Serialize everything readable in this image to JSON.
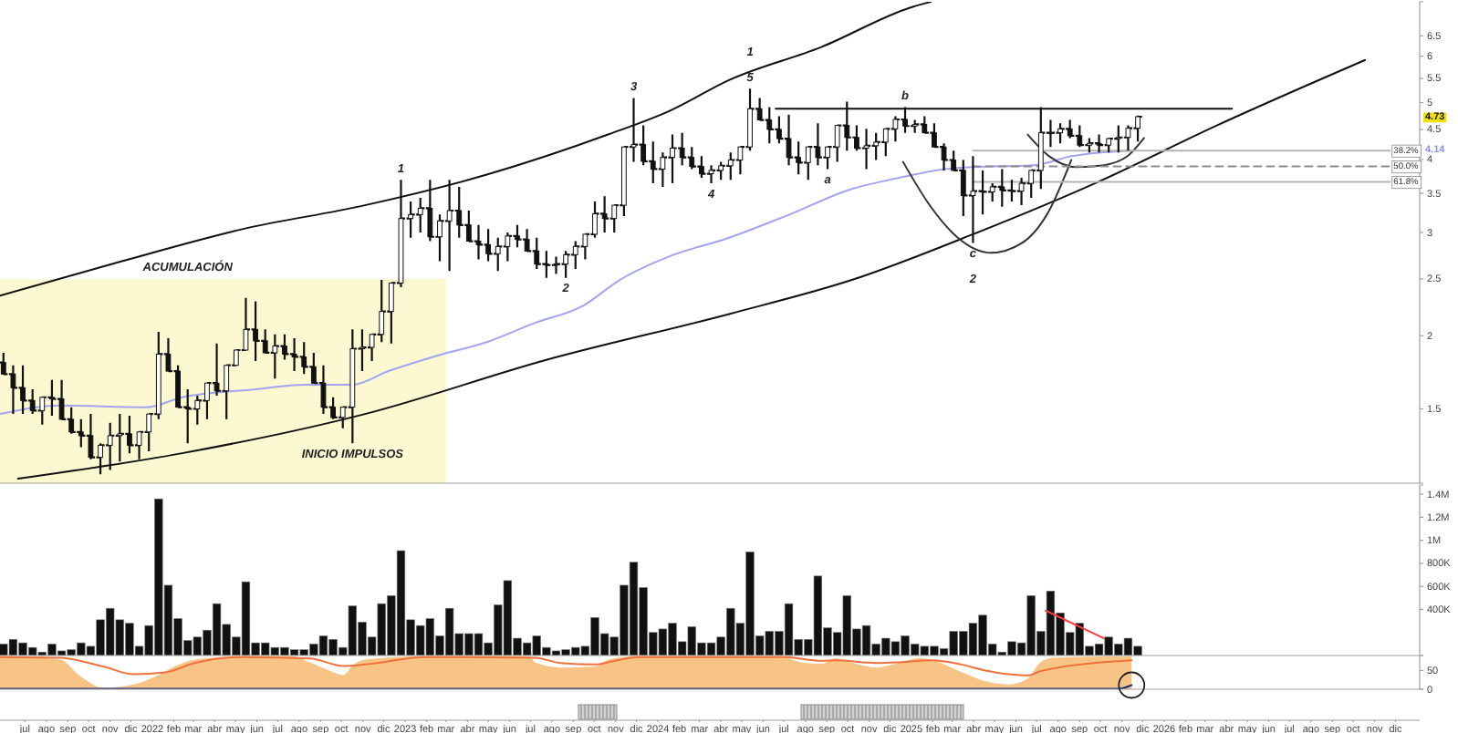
{
  "chart_data": [
    {
      "type": "candlestick",
      "color": "#111111",
      "log": true,
      "tick_labels": "y",
      "xlim": [
        "2021-05-26",
        "2027-01-05"
      ],
      "ylim": [
        1.12,
        7.43
      ],
      "yticks": [
        1.5,
        2,
        2.5,
        3,
        3.5,
        4,
        4.5,
        5,
        5.5,
        6,
        6.5
      ],
      "x": [
        "2021-05-31",
        "2021-06-14",
        "2021-06-28",
        "2021-07-12",
        "2021-07-26",
        "2021-08-09",
        "2021-08-23",
        "2021-09-06",
        "2021-09-20",
        "2021-10-04",
        "2021-10-18",
        "2021-11-01",
        "2021-11-15",
        "2021-11-29",
        "2021-12-13",
        "2021-12-27",
        "2022-01-10",
        "2022-01-24",
        "2022-02-07",
        "2022-02-21",
        "2022-03-07",
        "2022-03-21",
        "2022-04-04",
        "2022-04-18",
        "2022-05-02",
        "2022-05-16",
        "2022-05-30",
        "2022-06-13",
        "2022-06-27",
        "2022-07-11",
        "2022-07-25",
        "2022-08-08",
        "2022-08-22",
        "2022-09-05",
        "2022-09-19",
        "2022-10-03",
        "2022-10-17",
        "2022-10-31",
        "2022-11-14",
        "2022-11-28",
        "2022-12-12",
        "2022-12-26",
        "2023-01-09",
        "2023-01-23",
        "2023-02-06",
        "2023-02-20",
        "2023-03-06",
        "2023-03-20",
        "2023-04-03",
        "2023-04-17",
        "2023-05-01",
        "2023-05-15",
        "2023-05-29",
        "2023-06-12",
        "2023-06-26",
        "2023-07-10",
        "2023-07-24",
        "2023-08-07",
        "2023-08-21",
        "2023-09-04",
        "2023-09-18",
        "2023-10-02",
        "2023-10-16",
        "2023-10-30",
        "2023-11-13",
        "2023-11-27",
        "2023-12-11",
        "2023-12-25",
        "2024-01-08",
        "2024-01-22",
        "2024-02-05",
        "2024-02-19",
        "2024-03-04",
        "2024-03-18",
        "2024-04-01",
        "2024-04-15",
        "2024-04-29",
        "2024-05-13",
        "2024-05-27",
        "2024-06-10",
        "2024-06-24",
        "2024-07-08",
        "2024-07-22",
        "2024-08-05",
        "2024-08-19",
        "2024-09-02",
        "2024-09-16",
        "2024-09-30",
        "2024-10-14",
        "2024-10-28",
        "2024-11-11",
        "2024-11-25",
        "2024-12-09",
        "2024-12-23",
        "2025-01-06",
        "2025-01-20",
        "2025-02-03",
        "2025-02-17",
        "2025-03-03",
        "2025-03-17",
        "2025-03-31",
        "2025-04-14",
        "2025-04-28",
        "2025-05-12",
        "2025-05-26",
        "2025-06-09",
        "2025-06-23",
        "2025-07-07",
        "2025-07-21",
        "2025-08-04",
        "2025-08-18",
        "2025-09-01",
        "2025-09-15",
        "2025-09-29",
        "2025-10-13",
        "2025-10-27",
        "2025-11-10",
        "2025-11-24"
      ],
      "ohlc": [
        [
          1.8,
          1.87,
          1.72,
          1.72
        ],
        [
          1.72,
          1.78,
          1.47,
          1.63
        ],
        [
          1.63,
          1.78,
          1.47,
          1.55
        ],
        [
          1.55,
          1.62,
          1.47,
          1.49
        ],
        [
          1.49,
          1.57,
          1.41,
          1.57
        ],
        [
          1.57,
          1.68,
          1.46,
          1.56
        ],
        [
          1.56,
          1.68,
          1.44,
          1.44
        ],
        [
          1.44,
          1.51,
          1.36,
          1.37
        ],
        [
          1.37,
          1.44,
          1.29,
          1.35
        ],
        [
          1.35,
          1.47,
          1.23,
          1.24
        ],
        [
          1.24,
          1.31,
          1.16,
          1.3
        ],
        [
          1.3,
          1.42,
          1.18,
          1.35
        ],
        [
          1.35,
          1.47,
          1.22,
          1.36
        ],
        [
          1.36,
          1.46,
          1.26,
          1.3
        ],
        [
          1.3,
          1.37,
          1.23,
          1.37
        ],
        [
          1.37,
          1.47,
          1.27,
          1.47
        ],
        [
          1.47,
          2.03,
          1.44,
          1.86
        ],
        [
          1.86,
          1.98,
          1.74,
          1.74
        ],
        [
          1.74,
          1.78,
          1.51,
          1.51
        ],
        [
          1.51,
          1.62,
          1.31,
          1.5
        ],
        [
          1.5,
          1.58,
          1.41,
          1.55
        ],
        [
          1.55,
          1.66,
          1.44,
          1.66
        ],
        [
          1.66,
          1.94,
          1.58,
          1.61
        ],
        [
          1.61,
          1.78,
          1.44,
          1.78
        ],
        [
          1.78,
          1.89,
          1.78,
          1.89
        ],
        [
          1.89,
          2.32,
          1.89,
          2.05
        ],
        [
          2.05,
          2.29,
          1.81,
          1.96
        ],
        [
          1.96,
          2.05,
          1.87,
          1.87
        ],
        [
          1.87,
          2.01,
          1.69,
          1.92
        ],
        [
          1.92,
          2.01,
          1.82,
          1.86
        ],
        [
          1.86,
          1.98,
          1.74,
          1.84
        ],
        [
          1.84,
          1.95,
          1.72,
          1.77
        ],
        [
          1.77,
          1.87,
          1.66,
          1.66
        ],
        [
          1.66,
          1.78,
          1.47,
          1.51
        ],
        [
          1.51,
          1.57,
          1.44,
          1.45
        ],
        [
          1.45,
          1.51,
          1.39,
          1.51
        ],
        [
          1.51,
          2.05,
          1.31,
          1.9
        ],
        [
          1.9,
          2.05,
          1.74,
          1.91
        ],
        [
          1.91,
          2.01,
          1.81,
          2.01
        ],
        [
          2.01,
          2.49,
          1.95,
          2.2
        ],
        [
          2.2,
          2.46,
          1.94,
          2.46
        ],
        [
          2.46,
          3.69,
          2.42,
          3.17
        ],
        [
          3.17,
          3.39,
          2.94,
          3.22
        ],
        [
          3.22,
          3.44,
          3.0,
          3.3
        ],
        [
          3.3,
          3.69,
          2.9,
          2.95
        ],
        [
          2.95,
          3.22,
          2.68,
          3.14
        ],
        [
          3.14,
          3.69,
          2.58,
          3.27
        ],
        [
          3.27,
          3.59,
          2.94,
          3.09
        ],
        [
          3.09,
          3.27,
          2.9,
          2.9
        ],
        [
          2.9,
          3.09,
          2.7,
          2.86
        ],
        [
          2.86,
          3.04,
          2.68,
          2.76
        ],
        [
          2.76,
          2.94,
          2.58,
          2.84
        ],
        [
          2.84,
          3.0,
          2.68,
          2.96
        ],
        [
          2.96,
          3.09,
          2.83,
          2.92
        ],
        [
          2.92,
          3.04,
          2.79,
          2.79
        ],
        [
          2.79,
          2.94,
          2.6,
          2.65
        ],
        [
          2.65,
          2.79,
          2.51,
          2.64
        ],
        [
          2.64,
          2.73,
          2.55,
          2.65
        ],
        [
          2.65,
          2.79,
          2.51,
          2.75
        ],
        [
          2.75,
          2.9,
          2.6,
          2.84
        ],
        [
          2.84,
          2.98,
          2.7,
          2.98
        ],
        [
          2.98,
          3.39,
          2.94,
          3.23
        ],
        [
          3.23,
          3.46,
          3.0,
          3.17
        ],
        [
          3.17,
          3.34,
          3.0,
          3.34
        ],
        [
          3.34,
          4.2,
          3.2,
          4.2
        ],
        [
          4.2,
          5.09,
          3.96,
          4.24
        ],
        [
          4.24,
          4.57,
          3.91,
          3.97
        ],
        [
          3.97,
          4.29,
          3.64,
          3.85
        ],
        [
          3.85,
          4.11,
          3.59,
          4.03
        ],
        [
          4.03,
          4.41,
          3.64,
          4.18
        ],
        [
          4.18,
          4.44,
          3.91,
          4.03
        ],
        [
          4.03,
          4.2,
          3.85,
          3.89
        ],
        [
          3.89,
          4.05,
          3.72,
          3.78
        ],
        [
          3.78,
          3.91,
          3.64,
          3.83
        ],
        [
          3.83,
          3.96,
          3.69,
          3.9
        ],
        [
          3.9,
          4.11,
          3.69,
          3.99
        ],
        [
          3.99,
          4.2,
          3.77,
          4.2
        ],
        [
          4.2,
          5.28,
          4.14,
          4.88
        ],
        [
          4.88,
          5.09,
          4.67,
          4.67
        ],
        [
          4.67,
          4.91,
          4.26,
          4.5
        ],
        [
          4.5,
          4.74,
          4.26,
          4.34
        ],
        [
          4.34,
          4.77,
          3.91,
          4.03
        ],
        [
          4.03,
          4.29,
          3.77,
          3.95
        ],
        [
          3.95,
          4.2,
          3.69,
          4.2
        ],
        [
          4.2,
          4.61,
          3.91,
          4.03
        ],
        [
          4.03,
          4.2,
          3.85,
          4.2
        ],
        [
          4.2,
          4.57,
          3.96,
          4.57
        ],
        [
          4.57,
          5.02,
          4.14,
          4.36
        ],
        [
          4.36,
          4.57,
          4.14,
          4.18
        ],
        [
          4.18,
          4.51,
          3.85,
          4.22
        ],
        [
          4.22,
          4.44,
          3.99,
          4.28
        ],
        [
          4.28,
          4.51,
          4.05,
          4.51
        ],
        [
          4.51,
          4.74,
          4.29,
          4.68
        ],
        [
          4.68,
          4.91,
          4.44,
          4.56
        ],
        [
          4.56,
          4.67,
          4.44,
          4.59
        ],
        [
          4.59,
          4.74,
          4.44,
          4.44
        ],
        [
          4.44,
          4.61,
          4.2,
          4.2
        ],
        [
          4.2,
          4.26,
          3.83,
          3.99
        ],
        [
          3.99,
          4.14,
          3.83,
          3.83
        ],
        [
          3.83,
          3.99,
          3.2,
          3.47
        ],
        [
          3.47,
          4.05,
          2.88,
          3.53
        ],
        [
          3.53,
          3.83,
          3.22,
          3.52
        ],
        [
          3.52,
          3.64,
          3.39,
          3.59
        ],
        [
          3.59,
          3.85,
          3.32,
          3.54
        ],
        [
          3.54,
          3.69,
          3.39,
          3.53
        ],
        [
          3.53,
          3.72,
          3.34,
          3.64
        ],
        [
          3.64,
          3.83,
          3.44,
          3.83
        ],
        [
          3.83,
          4.91,
          3.56,
          4.44
        ],
        [
          4.44,
          4.67,
          4.2,
          4.44
        ],
        [
          4.44,
          4.61,
          4.26,
          4.51
        ],
        [
          4.51,
          4.67,
          4.35,
          4.39
        ],
        [
          4.39,
          4.57,
          4.2,
          4.23
        ],
        [
          4.23,
          4.35,
          4.11,
          4.26
        ],
        [
          4.26,
          4.41,
          4.11,
          4.23
        ],
        [
          4.23,
          4.35,
          4.11,
          4.34
        ],
        [
          4.34,
          4.57,
          4.11,
          4.36
        ],
        [
          4.36,
          4.57,
          4.14,
          4.52
        ],
        [
          4.52,
          4.75,
          4.29,
          4.73
        ]
      ],
      "series": [
        {
          "type": "area",
          "x": [
            "2021-05-26",
            "2023-03-01"
          ],
          "values": [
            2.5,
            2.5
          ],
          "color": "#fcf8d2"
        },
        {
          "type": "line",
          "color": "#a3a3f0",
          "x": [
            "2021-05-26",
            "2021-08-21",
            "2021-12-23",
            "2022-02-13",
            "2022-05-30",
            "2022-08-09",
            "2022-10-17",
            "2022-12-08",
            "2023-02-17",
            "2023-04-29",
            "2023-07-06",
            "2023-09-15",
            "2023-11-07",
            "2024-01-17",
            "2024-04-13",
            "2024-07-09",
            "2024-10-07",
            "2024-12-14",
            "2025-02-05",
            "2025-03-30",
            "2025-06-28",
            "2025-08-20",
            "2025-11-15"
          ],
          "values": [
            1.47,
            1.52,
            1.51,
            1.57,
            1.62,
            1.65,
            1.65,
            1.74,
            1.85,
            1.95,
            2.1,
            2.25,
            2.49,
            2.73,
            2.94,
            3.22,
            3.56,
            3.72,
            3.83,
            3.88,
            3.91,
            4.05,
            4.14
          ]
        },
        {
          "type": "line",
          "color": "#111111",
          "x": [
            "2021-05-26",
            "2021-11-18",
            "2022-05-11",
            "2022-11-04",
            "2023-04-30",
            "2023-10-21",
            "2024-01-18",
            "2024-04-14",
            "2024-08-24",
            "2025-01-02",
            "2025-01-29"
          ],
          "values": [
            2.34,
            2.68,
            3.04,
            3.34,
            3.77,
            4.41,
            4.84,
            5.47,
            6.22,
            7.28,
            7.43
          ]
        },
        {
          "type": "line",
          "color": "#111111",
          "x": [
            "2021-06-21",
            "2022-02-13",
            "2022-11-04",
            "2023-07-25",
            "2024-04-14",
            "2024-10-07",
            "2025-03-31",
            "2025-09-23",
            "2026-03-18",
            "2026-10-18"
          ],
          "values": [
            1.14,
            1.26,
            1.47,
            1.82,
            2.18,
            2.49,
            2.98,
            3.64,
            4.57,
            5.91
          ]
        },
        {
          "type": "line",
          "color": "#111111",
          "x": [
            "2024-06-19",
            "2026-04-09"
          ],
          "values": [
            4.88,
            4.88
          ]
        },
        {
          "type": "line",
          "color": "#333333",
          "x": [
            "2024-12-20",
            "2025-01-29",
            "2025-03-09",
            "2025-04-26",
            "2025-06-10",
            "2025-07-19",
            "2025-08-20"
          ],
          "values": [
            3.96,
            3.32,
            2.94,
            2.77,
            2.88,
            3.27,
            3.99
          ]
        },
        {
          "type": "line",
          "color": "#333333",
          "x": [
            "2025-06-18",
            "2025-07-19",
            "2025-08-28",
            "2025-10-06",
            "2025-11-09",
            "2025-12-03"
          ],
          "values": [
            4.41,
            4.05,
            3.88,
            3.91,
            4.05,
            4.35
          ]
        },
        {
          "type": "line",
          "color": "#b4b4b4",
          "x": [
            "2025-03-31",
            "2026-11-23"
          ],
          "values": [
            4.14,
            4.14
          ]
        },
        {
          "type": "line",
          "color": "#8c8c8c",
          "line_style": "dashed",
          "x": [
            "2025-03-31",
            "2026-11-23"
          ],
          "values": [
            3.89,
            3.89
          ]
        },
        {
          "type": "line",
          "color": "#b4b4b4",
          "x": [
            "2025-03-31",
            "2026-11-23"
          ],
          "values": [
            3.66,
            3.66
          ]
        }
      ],
      "annotations": [
        {
          "text": "ACUMULACIÓN",
          "x": "2022-02-21",
          "y": 2.5
        },
        {
          "text": "INICIO IMPULSOS",
          "x": "2022-10-17",
          "y": 1.31
        },
        {
          "text": "1",
          "x": "2022-12-26",
          "y": 3.69
        },
        {
          "text": "2",
          "x": "2023-08-21",
          "y": 2.51
        },
        {
          "text": "3",
          "x": "2023-11-27",
          "y": 5.09
        },
        {
          "text": "4",
          "x": "2024-03-18",
          "y": 3.64
        },
        {
          "text": "5",
          "x": "2024-05-13",
          "y": 5.28
        },
        {
          "text": "1",
          "x": "2024-05-13",
          "y": 5.28
        },
        {
          "text": "a",
          "x": "2024-09-02",
          "y": 3.85
        },
        {
          "text": "b",
          "x": "2024-12-23",
          "y": 4.91
        },
        {
          "text": "c",
          "x": "2025-03-31",
          "y": 2.88
        },
        {
          "text": "2",
          "x": "2025-03-31",
          "y": 2.88
        },
        {
          "text": "38.2%",
          "x": "2026-11-23",
          "y": 4.14
        },
        {
          "text": "50.0%",
          "x": "2026-11-23",
          "y": 3.89
        },
        {
          "text": "61.8%",
          "x": "2026-11-23",
          "y": 3.66
        },
        {
          "text": "4.73",
          "y": 4.73
        },
        "4.14"
      ]
    },
    {
      "type": "bar",
      "tick_labels": "y",
      "xlim": [
        "2021-05-26",
        "2027-01-05"
      ],
      "ylim": [
        0,
        1480000
      ],
      "yticks": [
        {
          "value": 400000,
          "label": "400K"
        },
        {
          "value": 600000,
          "label": "600K"
        },
        {
          "value": 800000,
          "label": "800K"
        },
        {
          "value": 1000000,
          "label": "1M"
        },
        {
          "value": 1200000,
          "label": "1.2M"
        },
        {
          "value": 1400000,
          "label": "1.4M"
        }
      ],
      "x": [
        "2021-05-31",
        "2021-06-14",
        "2021-06-28",
        "2021-07-12",
        "2021-07-26",
        "2021-08-09",
        "2021-08-23",
        "2021-09-06",
        "2021-09-20",
        "2021-10-04",
        "2021-10-18",
        "2021-11-01",
        "2021-11-15",
        "2021-11-29",
        "2021-12-13",
        "2021-12-27",
        "2022-01-10",
        "2022-01-24",
        "2022-02-07",
        "2022-02-21",
        "2022-03-07",
        "2022-03-21",
        "2022-04-04",
        "2022-04-18",
        "2022-05-02",
        "2022-05-16",
        "2022-05-30",
        "2022-06-13",
        "2022-06-27",
        "2022-07-11",
        "2022-07-25",
        "2022-08-08",
        "2022-08-22",
        "2022-09-05",
        "2022-09-19",
        "2022-10-03",
        "2022-10-17",
        "2022-10-31",
        "2022-11-14",
        "2022-11-28",
        "2022-12-12",
        "2022-12-26",
        "2023-01-09",
        "2023-01-23",
        "2023-02-06",
        "2023-02-20",
        "2023-03-06",
        "2023-03-20",
        "2023-04-03",
        "2023-04-17",
        "2023-05-01",
        "2023-05-15",
        "2023-05-29",
        "2023-06-12",
        "2023-06-26",
        "2023-07-10",
        "2023-07-24",
        "2023-08-07",
        "2023-08-21",
        "2023-09-04",
        "2023-09-18",
        "2023-10-02",
        "2023-10-16",
        "2023-10-30",
        "2023-11-13",
        "2023-11-27",
        "2023-12-11",
        "2023-12-25",
        "2024-01-08",
        "2024-01-22",
        "2024-02-05",
        "2024-02-19",
        "2024-03-04",
        "2024-03-18",
        "2024-04-01",
        "2024-04-15",
        "2024-04-29",
        "2024-05-13",
        "2024-05-27",
        "2024-06-10",
        "2024-06-24",
        "2024-07-08",
        "2024-07-22",
        "2024-08-05",
        "2024-08-19",
        "2024-09-02",
        "2024-09-16",
        "2024-09-30",
        "2024-10-14",
        "2024-10-28",
        "2024-11-11",
        "2024-11-25",
        "2024-12-09",
        "2024-12-23",
        "2025-01-06",
        "2025-01-20",
        "2025-02-03",
        "2025-02-17",
        "2025-03-03",
        "2025-03-17",
        "2025-03-31",
        "2025-04-14",
        "2025-04-28",
        "2025-05-12",
        "2025-05-26",
        "2025-06-09",
        "2025-06-23",
        "2025-07-07",
        "2025-07-21",
        "2025-08-04",
        "2025-08-18",
        "2025-09-01",
        "2025-09-15",
        "2025-09-29",
        "2025-10-13",
        "2025-10-27",
        "2025-11-10",
        "2025-11-24"
      ],
      "series": [
        {
          "type": "bar",
          "color": "#111111",
          "values": [
            100000,
            140000,
            110000,
            70000,
            30000,
            100000,
            40000,
            50000,
            110000,
            80000,
            310000,
            410000,
            310000,
            280000,
            80000,
            260000,
            1360000,
            610000,
            320000,
            130000,
            160000,
            220000,
            450000,
            270000,
            160000,
            640000,
            110000,
            110000,
            70000,
            70000,
            50000,
            50000,
            100000,
            170000,
            140000,
            70000,
            430000,
            290000,
            160000,
            450000,
            520000,
            910000,
            310000,
            260000,
            320000,
            170000,
            410000,
            190000,
            190000,
            190000,
            110000,
            440000,
            650000,
            150000,
            110000,
            170000,
            70000,
            40000,
            50000,
            70000,
            80000,
            330000,
            190000,
            160000,
            610000,
            810000,
            590000,
            200000,
            230000,
            280000,
            120000,
            250000,
            110000,
            110000,
            160000,
            410000,
            280000,
            900000,
            170000,
            210000,
            210000,
            450000,
            140000,
            140000,
            690000,
            240000,
            200000,
            520000,
            230000,
            260000,
            100000,
            150000,
            120000,
            170000,
            100000,
            80000,
            80000,
            60000,
            210000,
            210000,
            280000,
            350000,
            100000,
            30000,
            120000,
            110000,
            520000,
            210000,
            560000,
            370000,
            200000,
            280000,
            80000,
            100000,
            160000,
            100000,
            150000,
            80000
          ]
        },
        {
          "type": "line",
          "color": "#ff3b3b",
          "x": [
            "2025-07-14",
            "2025-10-06"
          ],
          "values": [
            390000,
            150000
          ]
        }
      ]
    },
    {
      "type": "area",
      "xlim": [
        "2021-05-26",
        "2027-01-05"
      ],
      "ylim": [
        0,
        90
      ],
      "yticks": [
        0,
        50
      ],
      "series": [
        {
          "type": "area",
          "color": "#f7c486",
          "x": [
            "2021-05-26",
            "2021-08-21",
            "2021-09-17",
            "2021-10-23",
            "2021-12-05",
            "2022-01-10",
            "2022-02-05",
            "2022-03-03",
            "2022-05-12",
            "2022-07-22",
            "2022-08-17",
            "2022-09-12",
            "2022-10-04",
            "2022-10-17",
            "2022-11-04",
            "2023-01-31",
            "2023-06-29",
            "2023-07-08",
            "2023-08-13",
            "2023-10-04",
            "2023-10-21",
            "2023-12-04",
            "2024-04-14",
            "2024-07-02",
            "2024-07-28",
            "2024-08-24",
            "2024-09-14",
            "2024-10-07",
            "2024-11-11",
            "2024-12-15",
            "2025-01-11",
            "2025-01-29",
            "2025-03-14",
            "2025-04-18",
            "2025-05-22",
            "2025-06-18",
            "2025-07-06",
            "2025-07-24",
            "2025-11-15"
          ],
          "values": [
            88,
            79,
            38,
            4,
            13,
            38,
            63,
            79,
            88,
            88,
            71,
            51,
            38,
            63,
            79,
            88,
            88,
            71,
            58,
            61,
            79,
            88,
            88,
            84,
            71,
            68,
            83,
            71,
            58,
            71,
            83,
            79,
            46,
            21,
            13,
            29,
            71,
            84,
            88
          ]
        },
        {
          "type": "line",
          "color": "#f0703c",
          "x": [
            "2021-05-26",
            "2021-08-21",
            "2021-10-23",
            "2021-12-05",
            "2022-01-20",
            "2022-03-03",
            "2022-05-12",
            "2022-08-17",
            "2022-10-04",
            "2022-11-04",
            "2023-01-31",
            "2023-07-08",
            "2023-08-13",
            "2023-10-04",
            "2023-10-21",
            "2023-12-04",
            "2024-07-02",
            "2024-08-24",
            "2024-09-14",
            "2024-11-11",
            "2024-12-15",
            "2025-01-29",
            "2025-03-14",
            "2025-04-18",
            "2025-05-22",
            "2025-06-18",
            "2025-07-06",
            "2025-07-24",
            "2025-11-15"
          ],
          "values": [
            86,
            84,
            60,
            40,
            45,
            70,
            86,
            82,
            62,
            66,
            86,
            84,
            70,
            66,
            72,
            86,
            86,
            76,
            77,
            70,
            72,
            77,
            66,
            50,
            40,
            37,
            48,
            55,
            77
          ]
        },
        {
          "type": "line",
          "color": "#1b2a7a",
          "x": [
            "2021-05-26",
            "2025-10-27",
            "2025-11-15"
          ],
          "values": [
            1,
            1,
            11
          ]
        }
      ],
      "xticks": [
        {
          "value": "2021-07-01",
          "label": "jul"
        },
        {
          "value": "2021-08-01",
          "label": "ago"
        },
        {
          "value": "2021-09-01",
          "label": "sep"
        },
        {
          "value": "2021-10-01",
          "label": "oct"
        },
        {
          "value": "2021-11-01",
          "label": "nov"
        },
        {
          "value": "2021-12-01",
          "label": "dic"
        },
        {
          "value": "2022-01-01",
          "label": "2022"
        },
        {
          "value": "2022-02-01",
          "label": "feb"
        },
        {
          "value": "2022-03-01",
          "label": "mar"
        },
        {
          "value": "2022-04-01",
          "label": "abr"
        },
        {
          "value": "2022-05-01",
          "label": "may"
        },
        {
          "value": "2022-06-01",
          "label": "jun"
        },
        {
          "value": "2022-07-01",
          "label": "jul"
        },
        {
          "value": "2022-08-01",
          "label": "ago"
        },
        {
          "value": "2022-09-01",
          "label": "sep"
        },
        {
          "value": "2022-10-01",
          "label": "oct"
        },
        {
          "value": "2022-11-01",
          "label": "nov"
        },
        {
          "value": "2022-12-01",
          "label": "dic"
        },
        {
          "value": "2023-01-01",
          "label": "2023"
        },
        {
          "value": "2023-02-01",
          "label": "feb"
        },
        {
          "value": "2023-03-01",
          "label": "mar"
        },
        {
          "value": "2023-04-01",
          "label": "abr"
        },
        {
          "value": "2023-05-01",
          "label": "may"
        },
        {
          "value": "2023-06-01",
          "label": "jun"
        },
        {
          "value": "2023-07-01",
          "label": "jul"
        },
        {
          "value": "2023-08-01",
          "label": "ago"
        },
        {
          "value": "2023-09-01",
          "label": "sep"
        },
        {
          "value": "2023-10-01",
          "label": "oct"
        },
        {
          "value": "2023-11-01",
          "label": "nov"
        },
        {
          "value": "2023-12-01",
          "label": "dic"
        },
        {
          "value": "2024-01-01",
          "label": "2024"
        },
        {
          "value": "2024-02-01",
          "label": "feb"
        },
        {
          "value": "2024-03-01",
          "label": "mar"
        },
        {
          "value": "2024-04-01",
          "label": "abr"
        },
        {
          "value": "2024-05-01",
          "label": "may"
        },
        {
          "value": "2024-06-01",
          "label": "jun"
        },
        {
          "value": "2024-07-01",
          "label": "jul"
        },
        {
          "value": "2024-08-01",
          "label": "ago"
        },
        {
          "value": "2024-09-01",
          "label": "sep"
        },
        {
          "value": "2024-10-01",
          "label": "oct"
        },
        {
          "value": "2024-11-01",
          "label": "nov"
        },
        {
          "value": "2024-12-01",
          "label": "dic"
        },
        {
          "value": "2025-01-01",
          "label": "2025"
        },
        {
          "value": "2025-02-01",
          "label": "feb"
        },
        {
          "value": "2025-03-01",
          "label": "mar"
        },
        {
          "value": "2025-04-01",
          "label": "abr"
        },
        {
          "value": "2025-05-01",
          "label": "may"
        },
        {
          "value": "2025-06-01",
          "label": "jun"
        },
        {
          "value": "2025-07-01",
          "label": "jul"
        },
        {
          "value": "2025-08-01",
          "label": "ago"
        },
        {
          "value": "2025-09-01",
          "label": "sep"
        },
        {
          "value": "2025-10-01",
          "label": "oct"
        },
        {
          "value": "2025-11-01",
          "label": "nov"
        },
        {
          "value": "2025-12-01",
          "label": "dic"
        },
        {
          "value": "2026-01-01",
          "label": "2026"
        },
        {
          "value": "2026-02-01",
          "label": "feb"
        },
        {
          "value": "2026-03-01",
          "label": "mar"
        },
        {
          "value": "2026-04-01",
          "label": "abr"
        },
        {
          "value": "2026-05-01",
          "label": "may"
        },
        {
          "value": "2026-06-01",
          "label": "jun"
        },
        {
          "value": "2026-07-01",
          "label": "jul"
        },
        {
          "value": "2026-08-01",
          "label": "ago"
        },
        {
          "value": "2026-09-01",
          "label": "sep"
        },
        {
          "value": "2026-10-01",
          "label": "oct"
        },
        {
          "value": "2026-11-01",
          "label": "nov"
        },
        {
          "value": "2026-12-01",
          "label": "dic"
        }
      ]
    }
  ]
}
